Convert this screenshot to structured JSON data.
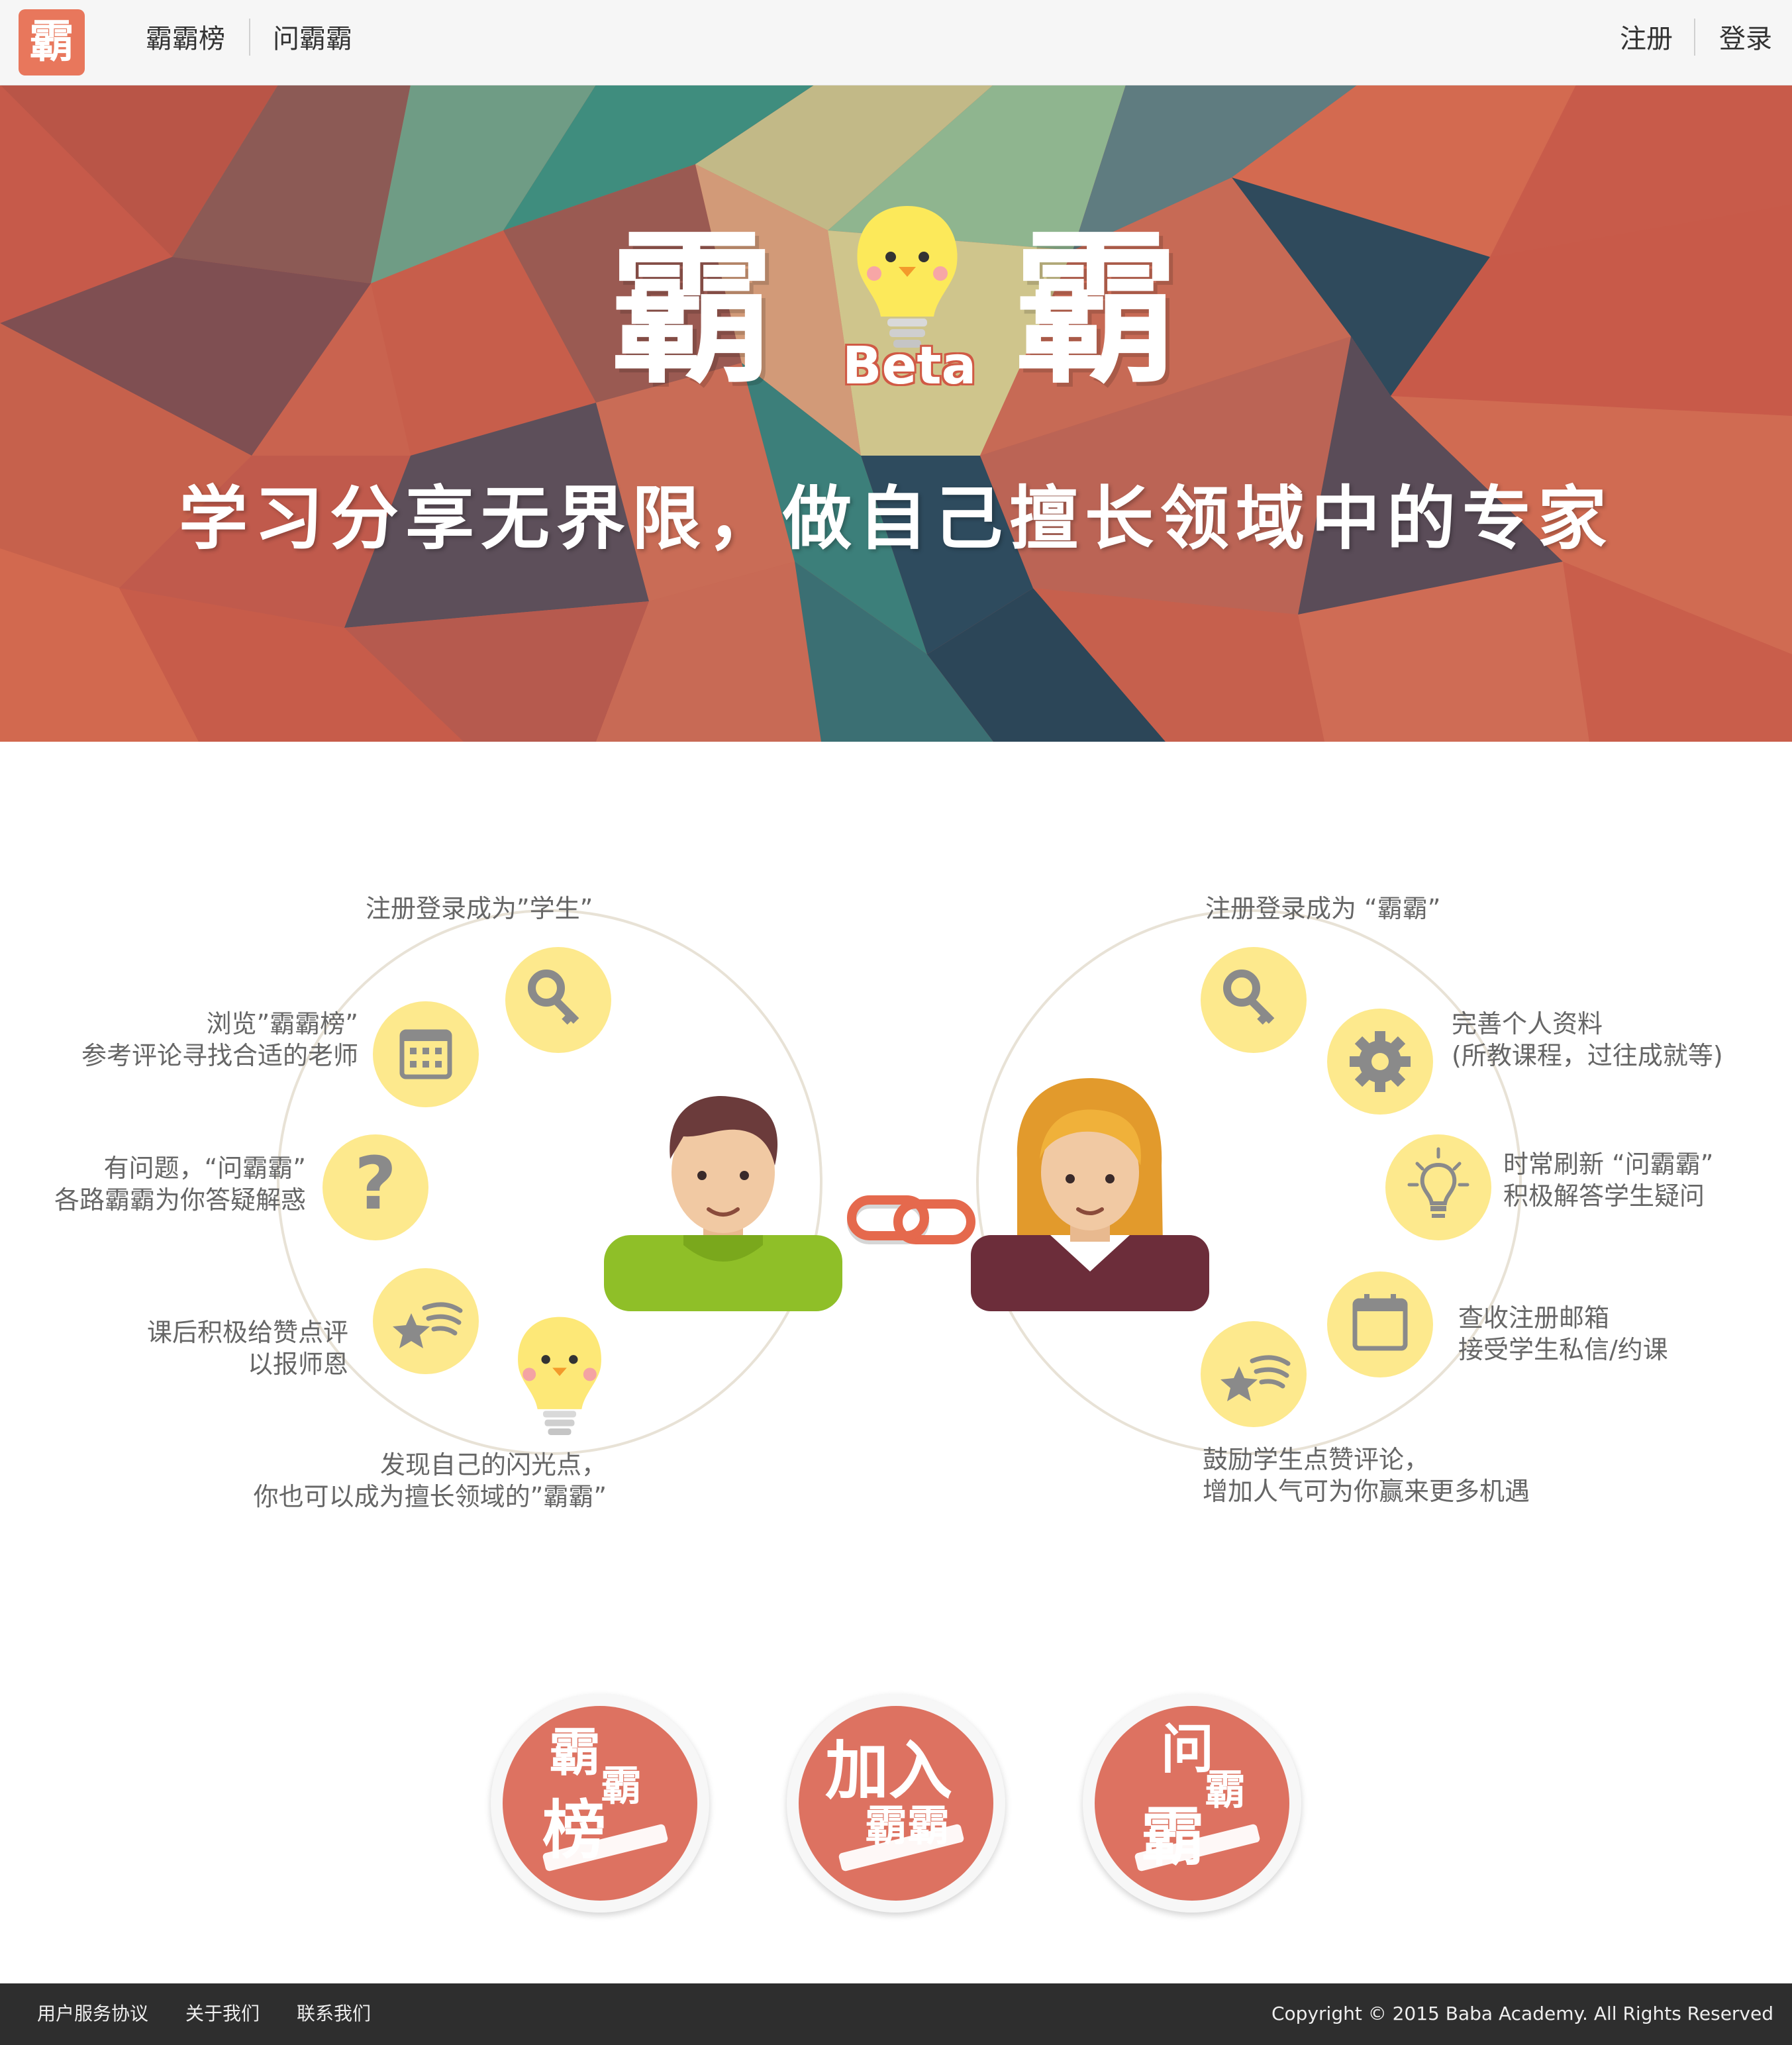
{
  "nav": {
    "logo_char": "霸",
    "links": [
      "霸霸榜",
      "问霸霸"
    ],
    "right_links": [
      "注册",
      "登录"
    ]
  },
  "hero": {
    "brand_left": "霸",
    "brand_right": "霸",
    "beta": "Beta",
    "slogan": "学习分享无界限，做自己擅长领域中的专家"
  },
  "student": {
    "steps": [
      {
        "icon": "key-icon",
        "lines": [
          "注册登录成为”学生”"
        ]
      },
      {
        "icon": "calendar-icon",
        "lines": [
          "浏览”霸霸榜”",
          "参考评论寻找合适的老师"
        ]
      },
      {
        "icon": "question-icon",
        "lines": [
          "有问题，“问霸霸”",
          "各路霸霸为你答疑解惑"
        ]
      },
      {
        "icon": "shooting-star-icon",
        "lines": [
          "课后积极给赞点评",
          "以报师恩"
        ]
      },
      {
        "icon": "chick-bulb-icon",
        "lines": [
          "发现自己的闪光点，",
          "你也可以成为擅长领域的”霸霸”"
        ]
      }
    ]
  },
  "teacher": {
    "steps": [
      {
        "icon": "key-icon",
        "lines": [
          "注册登录成为 “霸霸”"
        ]
      },
      {
        "icon": "gear-icon",
        "lines": [
          "完善个人资料",
          "(所教课程，过往成就等)"
        ]
      },
      {
        "icon": "lightbulb-icon",
        "lines": [
          "时常刷新 “问霸霸”",
          "积极解答学生疑问"
        ]
      },
      {
        "icon": "calendar-icon",
        "lines": [
          "查收注册邮箱",
          "接受学生私信/约课"
        ]
      },
      {
        "icon": "shooting-star-icon",
        "lines": [
          "鼓励学生点赞评论，",
          "增加人气可为你赢来更多机遇"
        ]
      }
    ]
  },
  "actions": [
    {
      "name": "bababang",
      "chars": [
        "霸",
        "霸",
        "榜"
      ]
    },
    {
      "name": "join",
      "chars": [
        "加入",
        "霸霸"
      ]
    },
    {
      "name": "ask",
      "chars": [
        "问",
        "霸",
        "霸"
      ]
    }
  ],
  "footer": {
    "links": [
      "用户服务协议",
      "关于我们",
      "联系我们"
    ],
    "copyright": "Copyright © 2015 Baba Academy. All Rights Reserved"
  },
  "colors": {
    "accent": "#e8775c",
    "icon_circle": "#fde98d",
    "footer_bg": "#2e2e2e"
  }
}
